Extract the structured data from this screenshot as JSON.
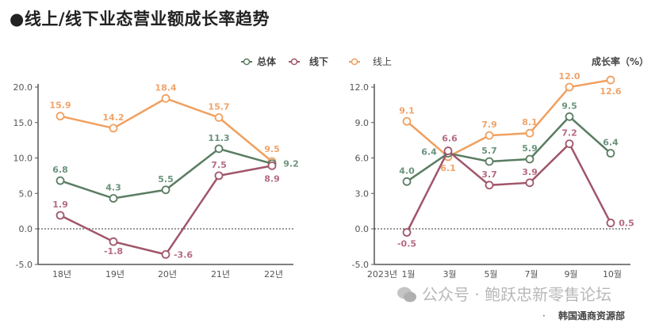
{
  "title": "●线上/线下业态营业额成长率趋势",
  "unit_label": "成长率（%）",
  "legend": [
    {
      "name": "总体",
      "color": "#5a7d62"
    },
    {
      "name": "线下",
      "color": "#a0566a"
    },
    {
      "name": "线上",
      "color": "#f0a060"
    }
  ],
  "label_colors": {
    "总体": "#6a937c",
    "线下": "#b56a82",
    "线上": "#f0a36b"
  },
  "watermark": "公众号 · 鲍跃忠新零售论坛",
  "watermark_icon": "wechat-icon",
  "source_bullet": "·",
  "source": "韩国通商资源部",
  "chart_data": [
    {
      "type": "line",
      "categories": [
        "18년",
        "19년",
        "20년",
        "21년",
        "22년"
      ],
      "ylim": [
        -5,
        20
      ],
      "yticks": [
        "20.0",
        "15.0",
        "10.0",
        "5.0",
        "0.0",
        "-5.0"
      ],
      "ytick_values": [
        20,
        15,
        10,
        5,
        0,
        -5
      ],
      "reference_line": 0,
      "series": [
        {
          "name": "线上",
          "values": [
            15.9,
            14.2,
            18.4,
            15.7,
            9.5
          ]
        },
        {
          "name": "总体",
          "values": [
            6.8,
            4.3,
            5.5,
            11.3,
            9.2
          ]
        },
        {
          "name": "线下",
          "values": [
            1.9,
            -1.8,
            -3.6,
            7.5,
            8.9
          ]
        }
      ]
    },
    {
      "type": "line",
      "x_prefix": "2023년",
      "categories": [
        "1월",
        "3월",
        "5월",
        "7월",
        "9월",
        "10월"
      ],
      "ylim": [
        -5,
        12
      ],
      "yticks": [
        "12.0",
        "9.0",
        "6.0",
        "3.0",
        "0.0",
        "-5.0"
      ],
      "ytick_values": [
        12,
        9,
        6,
        3,
        0,
        -5
      ],
      "reference_line": 0,
      "series": [
        {
          "name": "线上",
          "values": [
            9.1,
            6.1,
            7.9,
            8.1,
            12.0,
            12.6
          ]
        },
        {
          "name": "总体",
          "values": [
            4.0,
            6.4,
            5.7,
            5.9,
            9.5,
            6.4
          ]
        },
        {
          "name": "线下",
          "values": [
            -0.5,
            6.6,
            3.7,
            3.9,
            7.2,
            0.5
          ]
        }
      ]
    }
  ]
}
